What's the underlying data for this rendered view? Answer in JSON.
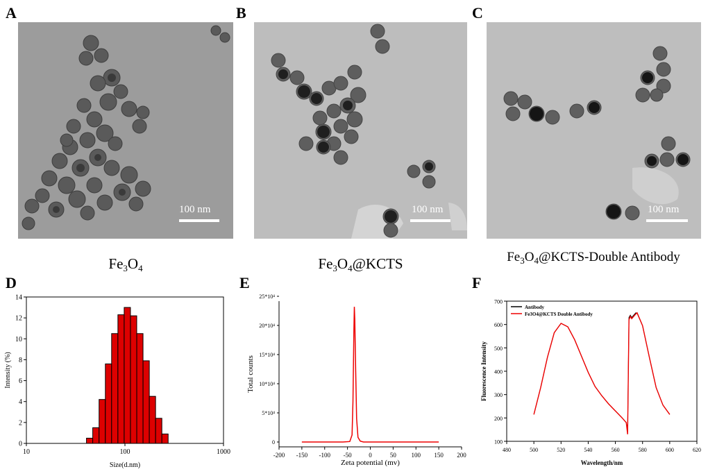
{
  "panels": {
    "A": {
      "letter": "A",
      "scale_label": "100 nm",
      "caption_parts": [
        "Fe",
        "3",
        "O",
        "4",
        ""
      ]
    },
    "B": {
      "letter": "B",
      "scale_label": "100 nm",
      "caption_parts": [
        "Fe",
        "3",
        "O",
        "4",
        "@KCTS"
      ]
    },
    "C": {
      "letter": "C",
      "scale_label": "100 nm",
      "caption_parts": [
        "Fe",
        "3",
        "O",
        "4",
        "@KCTS-Double Antibody"
      ]
    },
    "D": {
      "letter": "D"
    },
    "E": {
      "letter": "E"
    },
    "F": {
      "letter": "F"
    }
  },
  "chart_data": [
    {
      "id": "D",
      "type": "bar",
      "xscale": "log",
      "xlabel": "Size(d.nm)",
      "ylabel": "Intensity (%)",
      "xlim": [
        10,
        1000
      ],
      "ylim": [
        0,
        14
      ],
      "xticks": [
        "10",
        "100",
        "1000"
      ],
      "yticks": [
        "0",
        "2",
        "4",
        "6",
        "8",
        "10",
        "12",
        "14"
      ],
      "bar_color": "#dd0000",
      "x": [
        43.8,
        50.7,
        58.8,
        68.1,
        78.8,
        91.3,
        105.7,
        122.4,
        141.8,
        164.2,
        190.1,
        220.2,
        255.0
      ],
      "values": [
        0.5,
        1.5,
        4.2,
        7.6,
        10.5,
        12.3,
        13.0,
        12.2,
        10.5,
        7.9,
        4.5,
        2.4,
        0.9
      ]
    },
    {
      "id": "E",
      "type": "line",
      "xlabel": "Zeta potential (mv)",
      "ylabel": "Total counts",
      "xlim": [
        -200,
        200
      ],
      "ylim": [
        0,
        250000
      ],
      "xticks": [
        "-200",
        "-150",
        "-100",
        "-50",
        "0",
        "50",
        "100",
        "150",
        "200"
      ],
      "yticks": [
        "0",
        "5*10⁴",
        "10*10⁴",
        "15*10⁴",
        "20*10⁴",
        "25*10⁴"
      ],
      "line_color": "#ee0000",
      "x": [
        -150,
        -60,
        -45,
        -40,
        -38,
        -36,
        -35,
        -34,
        -32,
        -30,
        -27,
        -22,
        -15,
        0,
        150
      ],
      "values": [
        0,
        0,
        800,
        12000,
        70000,
        190000,
        232000,
        210000,
        120000,
        40000,
        8000,
        1500,
        0,
        0,
        0
      ]
    },
    {
      "id": "F",
      "type": "line",
      "xlabel": "Wavelength/nm",
      "ylabel": "Fluorescence Intensity",
      "xlim": [
        480,
        620
      ],
      "ylim": [
        100,
        700
      ],
      "xticks": [
        "480",
        "500",
        "520",
        "540",
        "560",
        "580",
        "600",
        "620"
      ],
      "yticks": [
        "100",
        "200",
        "300",
        "400",
        "500",
        "600",
        "700"
      ],
      "legend_position": "top-left",
      "series": [
        {
          "name": "Antibody",
          "color": "#000000",
          "x": [
            500,
            505,
            510,
            515,
            520,
            525,
            530,
            535,
            540,
            545,
            550,
            555,
            560,
            565,
            568,
            569,
            570,
            571,
            572,
            575,
            576,
            580,
            585,
            590,
            595,
            600
          ],
          "values": [
            215,
            330,
            460,
            565,
            605,
            590,
            535,
            465,
            395,
            335,
            295,
            260,
            230,
            200,
            180,
            145,
            630,
            640,
            630,
            650,
            648,
            595,
            460,
            330,
            255,
            215
          ]
        },
        {
          "name": "Fe3O4@KCTS   Double Antibody",
          "color": "#ee0000",
          "x": [
            500,
            505,
            510,
            515,
            520,
            525,
            530,
            535,
            540,
            545,
            550,
            555,
            560,
            565,
            568,
            569,
            570,
            571,
            572,
            575,
            576,
            580,
            585,
            590,
            595,
            600
          ],
          "values": [
            215,
            330,
            460,
            565,
            605,
            590,
            535,
            465,
            395,
            335,
            295,
            260,
            230,
            200,
            180,
            130,
            620,
            635,
            625,
            645,
            650,
            595,
            460,
            330,
            255,
            215
          ]
        }
      ]
    }
  ]
}
